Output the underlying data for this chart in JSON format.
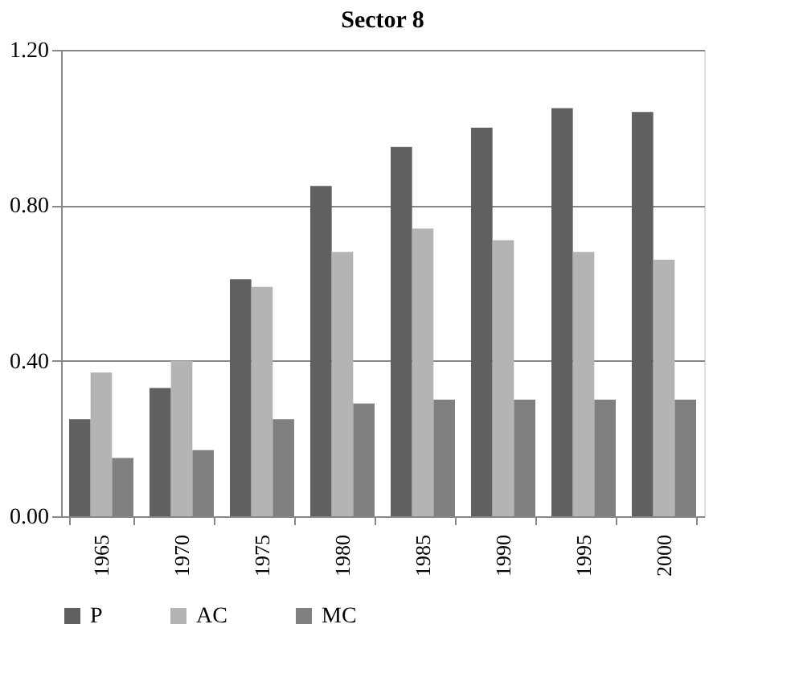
{
  "chart_data": {
    "type": "bar",
    "title": "Sector 8",
    "categories": [
      "1965",
      "1970",
      "1975",
      "1980",
      "1985",
      "1990",
      "1995",
      "2000"
    ],
    "series": [
      {
        "name": "P",
        "color": "#606060",
        "values": [
          0.25,
          0.33,
          0.61,
          0.85,
          0.95,
          1.0,
          1.05,
          1.04
        ]
      },
      {
        "name": "AC",
        "color": "#b4b4b4",
        "values": [
          0.37,
          0.4,
          0.59,
          0.68,
          0.74,
          0.71,
          0.68,
          0.66
        ]
      },
      {
        "name": "MC",
        "color": "#808080",
        "values": [
          0.15,
          0.17,
          0.25,
          0.29,
          0.3,
          0.3,
          0.3,
          0.3
        ]
      }
    ],
    "ylim": [
      0,
      1.2
    ],
    "yticks": [
      {
        "value": 0,
        "label": "0.00"
      },
      {
        "value": 0.4,
        "label": "0.40"
      },
      {
        "value": 0.8,
        "label": "0.80"
      },
      {
        "value": 1.2,
        "label": "1.20"
      }
    ],
    "grid": "y",
    "legend": "bottom"
  }
}
